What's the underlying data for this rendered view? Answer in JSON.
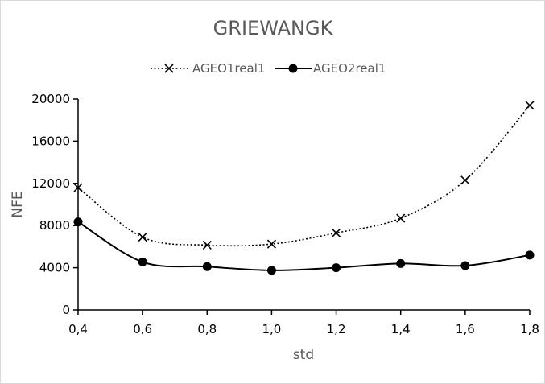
{
  "chart_data": {
    "type": "line",
    "title": "GRIEWANGK",
    "xlabel": "std",
    "ylabel": "NFE",
    "x": [
      "0,4",
      "0,6",
      "0,8",
      "1,0",
      "1,2",
      "1,4",
      "1,6",
      "1,8"
    ],
    "xlim": [
      0.4,
      1.8
    ],
    "ylim": [
      0,
      20000
    ],
    "yticks": [
      "0",
      "4000",
      "8000",
      "12000",
      "16000",
      "20000"
    ],
    "grid": false,
    "legend_position": "top",
    "series": [
      {
        "name": "AGEO1real1",
        "marker": "x-icon",
        "line_style": "dotted",
        "color": "#000000",
        "values": [
          11600,
          6900,
          6150,
          6250,
          7300,
          8700,
          12300,
          19400
        ]
      },
      {
        "name": "AGEO2real1",
        "marker": "filled-circle-icon",
        "line_style": "solid",
        "color": "#000000",
        "values": [
          8350,
          4550,
          4100,
          3750,
          4000,
          4400,
          4200,
          5200
        ]
      }
    ]
  }
}
